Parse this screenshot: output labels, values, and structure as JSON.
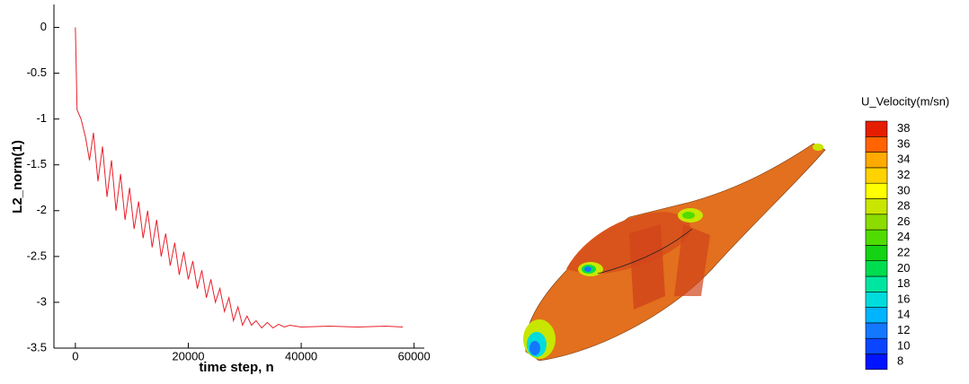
{
  "chart_data": [
    {
      "type": "line",
      "x_label": "time step, n",
      "y_label": "L2_norm(1)",
      "series": [
        {
          "color": "#e8202a",
          "x": [
            0,
            300,
            1000,
            1800,
            2500,
            3200,
            4000,
            4800,
            5600,
            6400,
            7200,
            8000,
            8800,
            9600,
            10400,
            11200,
            12000,
            12800,
            13600,
            14400,
            15200,
            16000,
            16800,
            17600,
            18400,
            19200,
            20000,
            20800,
            21600,
            22400,
            23200,
            24000,
            24800,
            25600,
            26400,
            27200,
            28000,
            28800,
            29600,
            30400,
            31200,
            32000,
            33000,
            34000,
            35000,
            36000,
            37000,
            38000,
            40000,
            45000,
            50000,
            55000,
            58000
          ],
          "values": [
            0,
            -0.9,
            -1.0,
            -1.2,
            -1.45,
            -1.15,
            -1.68,
            -1.3,
            -1.85,
            -1.45,
            -2.0,
            -1.6,
            -2.1,
            -1.75,
            -2.2,
            -1.9,
            -2.3,
            -2.0,
            -2.4,
            -2.1,
            -2.5,
            -2.25,
            -2.6,
            -2.35,
            -2.7,
            -2.45,
            -2.75,
            -2.55,
            -2.85,
            -2.65,
            -2.95,
            -2.75,
            -3.0,
            -2.85,
            -3.1,
            -2.95,
            -3.2,
            -3.05,
            -3.25,
            -3.15,
            -3.25,
            -3.2,
            -3.28,
            -3.22,
            -3.28,
            -3.24,
            -3.27,
            -3.25,
            -3.27,
            -3.26,
            -3.27,
            -3.26,
            -3.27
          ]
        }
      ],
      "xlim": [
        -3800,
        61800
      ],
      "ylim": [
        -3.5,
        0.25
      ],
      "xticks": [
        0,
        20000,
        40000,
        60000
      ],
      "yticks": [
        0,
        -0.5,
        -1,
        -1.5,
        -2,
        -2.5,
        -3,
        -3.5
      ]
    },
    {
      "type": "contour",
      "title": "U_Velocity(m/sn)",
      "levels": [
        8,
        10,
        12,
        14,
        16,
        18,
        20,
        22,
        24,
        26,
        28,
        30,
        32,
        34,
        36,
        38
      ],
      "colors": [
        "#0014ff",
        "#0a46ff",
        "#1478ff",
        "#00b4ff",
        "#00dcdc",
        "#00e6a0",
        "#00dc50",
        "#14d214",
        "#50dc00",
        "#8cdc00",
        "#c8e600",
        "#ffff00",
        "#ffd200",
        "#ffaa00",
        "#ff6400",
        "#e61e00"
      ]
    }
  ]
}
